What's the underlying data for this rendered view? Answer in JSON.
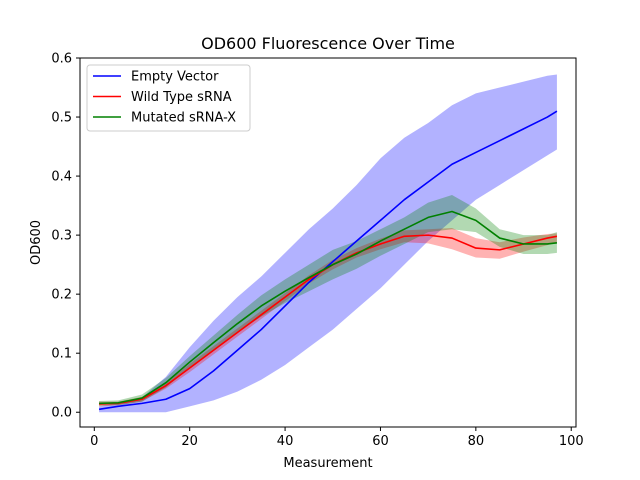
{
  "chart_data": {
    "type": "line",
    "title": "OD600 Fluorescence Over Time",
    "xlabel": "Measurement",
    "ylabel": "OD600",
    "xlim": [
      -3,
      101
    ],
    "ylim": [
      -0.025,
      0.6
    ],
    "x_ticks": [
      0,
      20,
      40,
      60,
      80,
      100
    ],
    "x_tick_labels": [
      "0",
      "20",
      "40",
      "60",
      "80",
      "100"
    ],
    "y_ticks": [
      0.0,
      0.1,
      0.2,
      0.3,
      0.4,
      0.5,
      0.6
    ],
    "y_tick_labels": [
      "0.0",
      "0.1",
      "0.2",
      "0.3",
      "0.4",
      "0.5",
      "0.6"
    ],
    "grid": false,
    "legend_position": "top-left",
    "shaded_band": "mean ± spread",
    "series": [
      {
        "name": "Empty Vector",
        "color": "#0000ff",
        "x": [
          1,
          5,
          10,
          15,
          20,
          25,
          30,
          35,
          40,
          45,
          50,
          55,
          60,
          65,
          70,
          75,
          80,
          85,
          90,
          95,
          97
        ],
        "mean": [
          0.005,
          0.01,
          0.015,
          0.022,
          0.04,
          0.07,
          0.105,
          0.14,
          0.18,
          0.22,
          0.255,
          0.29,
          0.325,
          0.36,
          0.39,
          0.42,
          0.44,
          0.46,
          0.48,
          0.5,
          0.51
        ],
        "lower": [
          0.0,
          0.0,
          0.0,
          0.0,
          0.01,
          0.02,
          0.035,
          0.055,
          0.08,
          0.11,
          0.14,
          0.175,
          0.21,
          0.25,
          0.29,
          0.325,
          0.36,
          0.385,
          0.41,
          0.435,
          0.445
        ],
        "upper": [
          0.01,
          0.015,
          0.025,
          0.06,
          0.11,
          0.155,
          0.195,
          0.23,
          0.27,
          0.31,
          0.345,
          0.385,
          0.43,
          0.465,
          0.49,
          0.52,
          0.54,
          0.55,
          0.56,
          0.57,
          0.572
        ]
      },
      {
        "name": "Wild Type sRNA",
        "color": "#ff0000",
        "x": [
          1,
          5,
          10,
          15,
          20,
          25,
          30,
          35,
          40,
          45,
          50,
          55,
          60,
          65,
          70,
          75,
          80,
          85,
          90,
          95,
          97
        ],
        "mean": [
          0.014,
          0.015,
          0.022,
          0.045,
          0.075,
          0.105,
          0.135,
          0.165,
          0.195,
          0.225,
          0.25,
          0.27,
          0.285,
          0.298,
          0.3,
          0.295,
          0.278,
          0.275,
          0.285,
          0.295,
          0.298
        ],
        "lower": [
          0.01,
          0.012,
          0.018,
          0.04,
          0.068,
          0.098,
          0.128,
          0.158,
          0.188,
          0.218,
          0.242,
          0.262,
          0.276,
          0.288,
          0.286,
          0.276,
          0.262,
          0.26,
          0.272,
          0.283,
          0.288
        ],
        "upper": [
          0.018,
          0.018,
          0.026,
          0.05,
          0.082,
          0.112,
          0.142,
          0.172,
          0.202,
          0.232,
          0.258,
          0.278,
          0.294,
          0.308,
          0.31,
          0.312,
          0.295,
          0.288,
          0.296,
          0.302,
          0.303
        ]
      },
      {
        "name": "Mutated sRNA-X",
        "color": "#008000",
        "x": [
          1,
          5,
          10,
          15,
          20,
          25,
          30,
          35,
          40,
          45,
          50,
          55,
          60,
          65,
          70,
          75,
          80,
          85,
          90,
          95,
          97
        ],
        "mean": [
          0.015,
          0.016,
          0.024,
          0.05,
          0.085,
          0.118,
          0.15,
          0.18,
          0.205,
          0.228,
          0.25,
          0.268,
          0.29,
          0.31,
          0.33,
          0.34,
          0.325,
          0.295,
          0.285,
          0.285,
          0.287
        ],
        "lower": [
          0.011,
          0.012,
          0.018,
          0.042,
          0.075,
          0.105,
          0.135,
          0.162,
          0.185,
          0.205,
          0.225,
          0.243,
          0.265,
          0.285,
          0.305,
          0.31,
          0.305,
          0.28,
          0.268,
          0.268,
          0.27
        ],
        "upper": [
          0.019,
          0.02,
          0.03,
          0.058,
          0.095,
          0.13,
          0.165,
          0.198,
          0.225,
          0.25,
          0.275,
          0.29,
          0.31,
          0.33,
          0.355,
          0.368,
          0.345,
          0.31,
          0.3,
          0.3,
          0.305
        ]
      }
    ]
  }
}
